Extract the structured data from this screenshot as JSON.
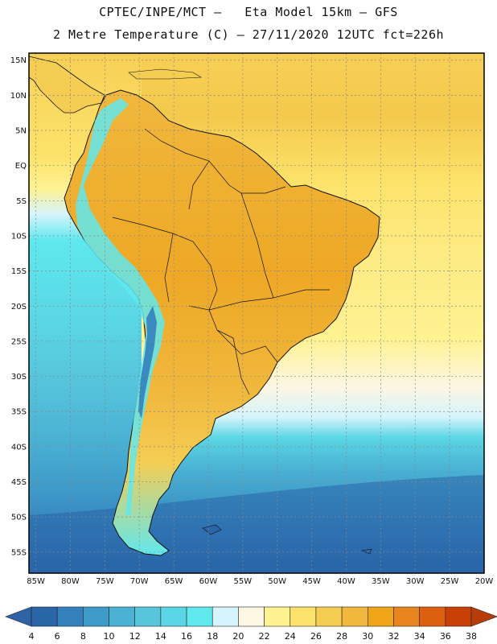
{
  "header": {
    "title_line1": "CPTEC/INPE/MCT –   Eta Model 15km – GFS",
    "title_line2": "2 Metre Temperature (C) – 27/11/2020 12UTC fct=226h"
  },
  "map": {
    "lat_labels": [
      "15N",
      "10N",
      "5N",
      "EQ",
      "5S",
      "10S",
      "15S",
      "20S",
      "25S",
      "30S",
      "35S",
      "40S",
      "45S",
      "50S",
      "55S"
    ],
    "lon_labels": [
      "85W",
      "80W",
      "75W",
      "70W",
      "65W",
      "60W",
      "55W",
      "50W",
      "45W",
      "40W",
      "35W",
      "30W",
      "25W",
      "20W"
    ],
    "lat_values": [
      15,
      10,
      5,
      0,
      -5,
      -10,
      -15,
      -20,
      -25,
      -30,
      -35,
      -40,
      -45,
      -50,
      -55
    ],
    "lon_values": [
      -85,
      -80,
      -75,
      -70,
      -65,
      -60,
      -55,
      -50,
      -45,
      -40,
      -35,
      -30,
      -25,
      -20
    ],
    "extent": {
      "lon_min": -86,
      "lon_max": -20,
      "lat_min": -58,
      "lat_max": 16
    }
  },
  "colorbar": {
    "ticks": [
      "4",
      "6",
      "8",
      "10",
      "12",
      "14",
      "16",
      "18",
      "20",
      "22",
      "24",
      "26",
      "28",
      "30",
      "32",
      "34",
      "36",
      "38"
    ],
    "colors": [
      "#2a65a8",
      "#3481bd",
      "#3e9ac9",
      "#4bb2d4",
      "#57c6dc",
      "#5ad6e4",
      "#5fe8ee",
      "#d6f4fb",
      "#fdf6e2",
      "#fef291",
      "#fde36b",
      "#f5cd53",
      "#f0b83d",
      "#eea518",
      "#e9851f",
      "#dd6010",
      "#c84005"
    ],
    "low_color": "#2f63a6",
    "high_color": "#b83c0a"
  },
  "legend": {
    "palette_name": "temperature-scale"
  }
}
